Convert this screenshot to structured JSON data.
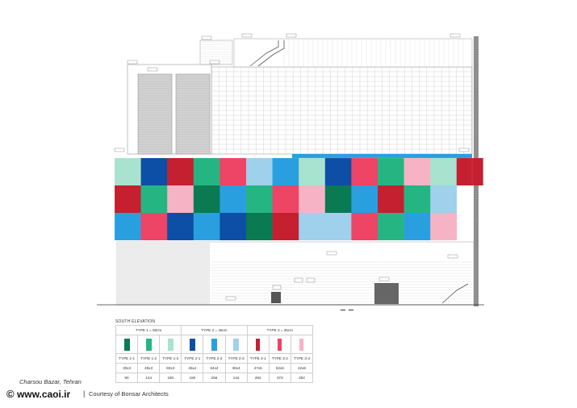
{
  "drawing": {
    "label_south_elevation": "SOUTH ELEVATION",
    "colors": {
      "green_dark": "#0a7a52",
      "green_light": "#25b583",
      "green_pale": "#a7e3cf",
      "blue_dark": "#0d4ea6",
      "blue_mid": "#2a9fe0",
      "blue_light": "#9fd0ec",
      "red_dark": "#c4202f",
      "red_mid": "#ee4466",
      "pink": "#f6b3c6",
      "line": "#9a9a9a"
    },
    "mosaic": [
      [
        "green_pale",
        "blue_dark",
        "red_dark",
        "green_light",
        "red_mid",
        "blue_light",
        "blue_mid",
        "green_pale",
        "blue_dark",
        "red_mid",
        "green_light",
        "pink",
        "green_pale",
        "red_dark"
      ],
      [
        "red_dark",
        "green_light",
        "pink",
        "green_dark",
        "blue_mid",
        "green_light",
        "red_mid",
        "pink",
        "green_dark",
        "blue_mid",
        "red_dark",
        "green_light",
        "blue_light"
      ],
      [
        "blue_mid",
        "red_mid",
        "blue_dark",
        "blue_mid",
        "blue_dark",
        "green_dark",
        "red_dark",
        "blue_light",
        "blue_light",
        "red_mid",
        "green_light",
        "blue_mid",
        "pink"
      ]
    ]
  },
  "legend": {
    "title": "SOUTH ELEVATION",
    "groups": [
      "TYPE 1 = 60cm",
      "TYPE 2 = 45cm",
      "TYPE 3 = 35cm"
    ],
    "types": [
      {
        "name": "TYPE 1-1",
        "size": "30x3",
        "count": "90",
        "color": "green_dark"
      },
      {
        "name": "TYPE 1-2",
        "size": "48x3",
        "count": "144",
        "color": "green_light"
      },
      {
        "name": "TYPE 1-3",
        "size": "60x3",
        "count": "180",
        "color": "green_pale"
      },
      {
        "name": "TYPE 2-1",
        "size": "45x4",
        "count": "180",
        "color": "blue_dark"
      },
      {
        "name": "TYPE 2-2",
        "size": "64x4",
        "count": "256",
        "color": "blue_mid"
      },
      {
        "name": "TYPE 2-3",
        "size": "36x4",
        "count": "144",
        "color": "blue_light"
      },
      {
        "name": "TYPE 3-1",
        "size": "47x6",
        "count": "282",
        "color": "red_dark"
      },
      {
        "name": "TYPE 3-2",
        "size": "62x6",
        "count": "372",
        "color": "red_mid"
      },
      {
        "name": "TYPE 3-3",
        "size": "42x6",
        "count": "252",
        "color": "pink"
      }
    ]
  },
  "footer": {
    "location": "Charsou Bazar, Tehran",
    "copyright_symbol": "©",
    "site": "www.caoi.ir",
    "separator": "|",
    "credit": "Courtesy of Bonsar Architects"
  }
}
